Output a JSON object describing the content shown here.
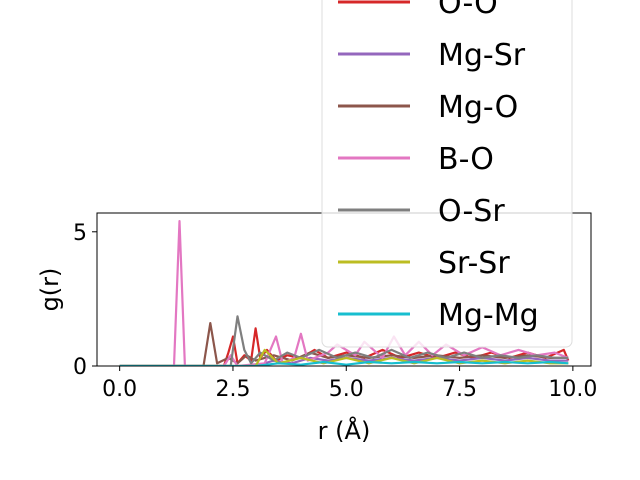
{
  "chart_data": {
    "type": "line",
    "xlabel": "r (Å)",
    "ylabel": "g(r)",
    "xlim": [
      -0.5,
      10.4
    ],
    "ylim": [
      0,
      5.7
    ],
    "x_ticks": [
      "0.0",
      "2.5",
      "5.0",
      "7.5",
      "10.0"
    ],
    "x_tick_values": [
      0,
      2.5,
      5,
      7.5,
      10
    ],
    "y_ticks": [
      "0",
      "5"
    ],
    "y_tick_values": [
      0,
      5
    ],
    "legend_placement": "upper-right, extending above the axes",
    "series": [
      {
        "name": "O-O",
        "color": "#d62728",
        "x": [
          0,
          2.3,
          2.4,
          2.5,
          2.6,
          2.75,
          2.9,
          3.0,
          3.1,
          3.25,
          3.45,
          3.7,
          4.0,
          4.3,
          4.6,
          5.0,
          5.4,
          5.8,
          6.2,
          6.6,
          7.0,
          7.4,
          7.8,
          8.2,
          8.6,
          9.0,
          9.4,
          9.8,
          9.9
        ],
        "y": [
          0,
          0,
          0.5,
          1.1,
          0.1,
          0.4,
          0.2,
          1.4,
          0.3,
          0.6,
          0.2,
          0.4,
          0.3,
          0.6,
          0.3,
          0.5,
          0.3,
          0.6,
          0.3,
          0.5,
          0.3,
          0.5,
          0.3,
          0.5,
          0.3,
          0.5,
          0.3,
          0.6,
          0.2
        ]
      },
      {
        "name": "Mg-Sr",
        "color": "#9467bd",
        "x": [
          0,
          3.0,
          3.4,
          3.8,
          4.2,
          4.6,
          5.0,
          5.5,
          6.0,
          6.5,
          7.0,
          7.5,
          8.0,
          8.5,
          9.0,
          9.5,
          9.9
        ],
        "y": [
          0,
          0,
          0.2,
          0.1,
          0.3,
          0.2,
          0.3,
          0.2,
          0.3,
          0.2,
          0.3,
          0.2,
          0.3,
          0.2,
          0.3,
          0.2,
          0.2
        ]
      },
      {
        "name": "Mg-O",
        "color": "#8c564b",
        "x": [
          0,
          1.85,
          2.0,
          2.15,
          2.4,
          2.6,
          2.8,
          3.0,
          3.4,
          3.8,
          4.2,
          4.6,
          5.0,
          5.5,
          6.0,
          6.5,
          7.0,
          7.5,
          8.0,
          8.5,
          9.0,
          9.5,
          9.9
        ],
        "y": [
          0,
          0,
          1.6,
          0.1,
          0.3,
          0.1,
          0.4,
          0.2,
          0.4,
          0.2,
          0.5,
          0.3,
          0.4,
          0.3,
          0.4,
          0.3,
          0.4,
          0.3,
          0.4,
          0.3,
          0.4,
          0.3,
          0.3
        ]
      },
      {
        "name": "B-O",
        "color": "#e377c2",
        "x": [
          0,
          1.2,
          1.32,
          1.44,
          2.3,
          2.45,
          2.6,
          3.2,
          3.45,
          3.6,
          3.85,
          4.0,
          4.15,
          4.6,
          4.8,
          5.2,
          5.4,
          5.8,
          6.05,
          6.3,
          6.6,
          6.9,
          7.2,
          7.6,
          8.0,
          8.4,
          8.8,
          9.2,
          9.6,
          9.9
        ],
        "y": [
          0,
          0,
          5.4,
          0,
          0,
          0.4,
          0,
          0.1,
          1.1,
          0.1,
          0.3,
          1.2,
          0.2,
          0.5,
          0.8,
          0.4,
          0.9,
          0.3,
          1.1,
          0.4,
          0.9,
          0.4,
          0.8,
          0.4,
          0.7,
          0.4,
          0.6,
          0.4,
          0.5,
          0.3
        ]
      },
      {
        "name": "O-Sr",
        "color": "#7f7f7f",
        "x": [
          0,
          2.45,
          2.6,
          2.75,
          2.9,
          3.1,
          3.4,
          3.7,
          4.0,
          4.4,
          4.8,
          5.2,
          5.6,
          6.0,
          6.4,
          6.8,
          7.2,
          7.6,
          8.0,
          8.4,
          8.8,
          9.2,
          9.6,
          9.9
        ],
        "y": [
          0,
          0,
          1.85,
          0.6,
          0.1,
          0.5,
          0.2,
          0.5,
          0.3,
          0.6,
          0.3,
          0.5,
          0.3,
          0.6,
          0.3,
          0.5,
          0.3,
          0.5,
          0.3,
          0.4,
          0.3,
          0.4,
          0.3,
          0.3
        ]
      },
      {
        "name": "Sr-Sr",
        "color": "#bcbd22",
        "x": [
          0,
          3.0,
          3.2,
          3.5,
          4.0,
          4.5,
          5.0,
          5.5,
          6.0,
          6.5,
          7.0,
          7.5,
          8.0,
          8.5,
          9.0,
          9.5,
          9.9
        ],
        "y": [
          0,
          0,
          0.6,
          0.1,
          0.3,
          0.1,
          0.3,
          0.1,
          0.3,
          0.1,
          0.3,
          0.1,
          0.2,
          0.1,
          0.2,
          0.1,
          0.1
        ]
      },
      {
        "name": "Mg-Mg",
        "color": "#17becf",
        "x": [
          0,
          3.0,
          3.5,
          4.0,
          4.5,
          5.0,
          5.5,
          6.0,
          6.5,
          7.0,
          7.5,
          8.0,
          8.5,
          9.0,
          9.5,
          9.9
        ],
        "y": [
          0,
          0,
          0.1,
          0.05,
          0.15,
          0.05,
          0.15,
          0.1,
          0.15,
          0.1,
          0.15,
          0.1,
          0.15,
          0.1,
          0.15,
          0.1
        ]
      }
    ]
  }
}
